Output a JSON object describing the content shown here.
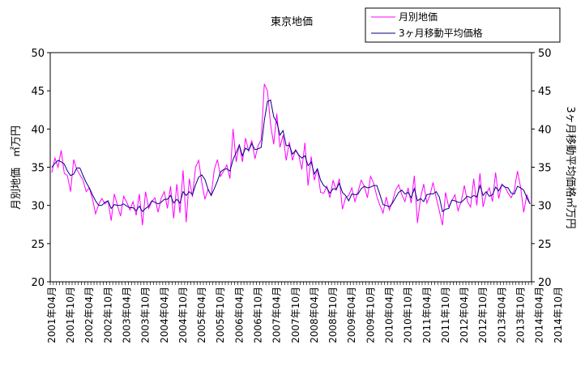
{
  "chart_data": {
    "type": "line",
    "title": "東京地価",
    "ylabel": "月別地価　㎡万円",
    "y2label": "3ヶ月移動平均価格㎡万円",
    "ylim": [
      20,
      50
    ],
    "y2lim": [
      20,
      50
    ],
    "yticks": [
      20,
      25,
      30,
      35,
      40,
      45,
      50
    ],
    "grid": false,
    "legend_position": "top-right",
    "x_tick_labels": [
      "2001年04月",
      "2001年10月",
      "2002年04月",
      "2002年10月",
      "2003年04月",
      "2003年10月",
      "2004年04月",
      "2004年10月",
      "2005年04月",
      "2005年10月",
      "2006年04月",
      "2006年10月",
      "2007年04月",
      "2007年10月",
      "2008年04月",
      "2008年10月",
      "2009年04月",
      "2009年10月",
      "2010年04月",
      "2010年10月",
      "2011年04月",
      "2011年10月",
      "2012年04月",
      "2012年10月",
      "2013年04月",
      "2013年10月",
      "2014年04月",
      "2014年10月"
    ],
    "series": [
      {
        "name": "月別地価",
        "color": "#ff00ff",
        "values": [
          34.3,
          36.2,
          35.0,
          37.2,
          34.2,
          33.9,
          31.8,
          36.0,
          34.7,
          34.0,
          33.3,
          31.8,
          32.3,
          30.9,
          28.9,
          30.1,
          30.9,
          30.2,
          30.6,
          28.0,
          31.5,
          30.0,
          28.6,
          31.2,
          30.4,
          29.4,
          30.5,
          28.7,
          31.5,
          27.4,
          31.8,
          29.6,
          30.5,
          31.0,
          29.1,
          30.9,
          31.8,
          29.6,
          32.5,
          28.3,
          32.8,
          29.0,
          34.6,
          27.8,
          33.5,
          31.1,
          35.0,
          35.9,
          33.0,
          30.8,
          32.1,
          31.3,
          34.7,
          36.0,
          33.8,
          34.5,
          35.3,
          33.5,
          40.0,
          35.7,
          38.0,
          35.7,
          38.8,
          37.1,
          38.5,
          36.1,
          37.8,
          38.6,
          45.9,
          45.0,
          40.6,
          38.0,
          42.0,
          37.6,
          39.2,
          35.9,
          38.3,
          35.9,
          37.3,
          36.6,
          34.7,
          38.2,
          32.6,
          36.4,
          33.3,
          34.8,
          31.7,
          31.6,
          32.5,
          31.0,
          33.3,
          32.0,
          33.5,
          29.5,
          31.0,
          31.3,
          32.3,
          30.5,
          31.8,
          33.3,
          32.5,
          31.0,
          33.8,
          32.9,
          31.2,
          30.0,
          29.0,
          31.1,
          29.4,
          30.5,
          32.0,
          32.7,
          31.4,
          30.5,
          32.3,
          30.3,
          33.9,
          27.7,
          31.0,
          32.8,
          30.3,
          31.3,
          33.0,
          31.0,
          29.3,
          27.4,
          31.7,
          29.8,
          30.6,
          31.4,
          29.3,
          30.5,
          32.6,
          30.5,
          29.8,
          33.5,
          30.0,
          34.2,
          29.8,
          31.5,
          32.3,
          30.5,
          34.3,
          30.9,
          32.8,
          32.4,
          31.6,
          31.0,
          32.0,
          34.5,
          32.4,
          29.1,
          31.4,
          30.2
        ]
      },
      {
        "name": "3ヶ月移動平均価格",
        "color": "#000080",
        "values": [
          35.0,
          35.5,
          35.9,
          35.7,
          35.4,
          34.5,
          33.9,
          34.1,
          34.9,
          34.9,
          33.9,
          33.0,
          32.3,
          31.4,
          30.6,
          30.0,
          30.0,
          30.4,
          30.6,
          29.6,
          30.1,
          30.0,
          30.0,
          30.2,
          29.9,
          29.7,
          29.7,
          29.3,
          29.9,
          29.2,
          29.6,
          29.9,
          30.6,
          30.4,
          30.2,
          30.4,
          30.8,
          30.8,
          31.3,
          30.3,
          30.8,
          30.3,
          31.8,
          31.3,
          31.8,
          31.4,
          32.7,
          33.7,
          34.0,
          33.4,
          32.1,
          31.3,
          32.2,
          33.2,
          34.4,
          34.7,
          34.8,
          34.5,
          36.0,
          36.9,
          37.9,
          36.5,
          37.5,
          37.2,
          38.1,
          37.3,
          37.4,
          37.6,
          41.1,
          43.6,
          43.8,
          41.6,
          40.9,
          39.2,
          39.8,
          37.8,
          37.9,
          36.7,
          37.2,
          36.6,
          36.2,
          36.5,
          35.2,
          35.7,
          34.1,
          34.8,
          33.3,
          32.6,
          32.3,
          31.6,
          32.2,
          32.1,
          32.9,
          31.7,
          31.3,
          30.6,
          31.5,
          31.4,
          31.5,
          32.2,
          32.5,
          32.3,
          32.4,
          32.6,
          32.6,
          31.4,
          30.1,
          30.0,
          29.8,
          30.3,
          31.0,
          31.7,
          32.0,
          31.5,
          31.7,
          31.0,
          32.2,
          30.6,
          30.9,
          30.5,
          31.4,
          31.5,
          31.5,
          31.8,
          31.1,
          29.2,
          29.5,
          29.6,
          30.7,
          30.6,
          30.4,
          30.4,
          30.8,
          31.2,
          31.0,
          31.3,
          31.1,
          32.6,
          31.3,
          31.8,
          31.2,
          31.4,
          32.4,
          31.9,
          32.7,
          32.4,
          32.3,
          31.6,
          31.5,
          32.5,
          32.3,
          32.0,
          31.0,
          30.2
        ]
      }
    ]
  }
}
